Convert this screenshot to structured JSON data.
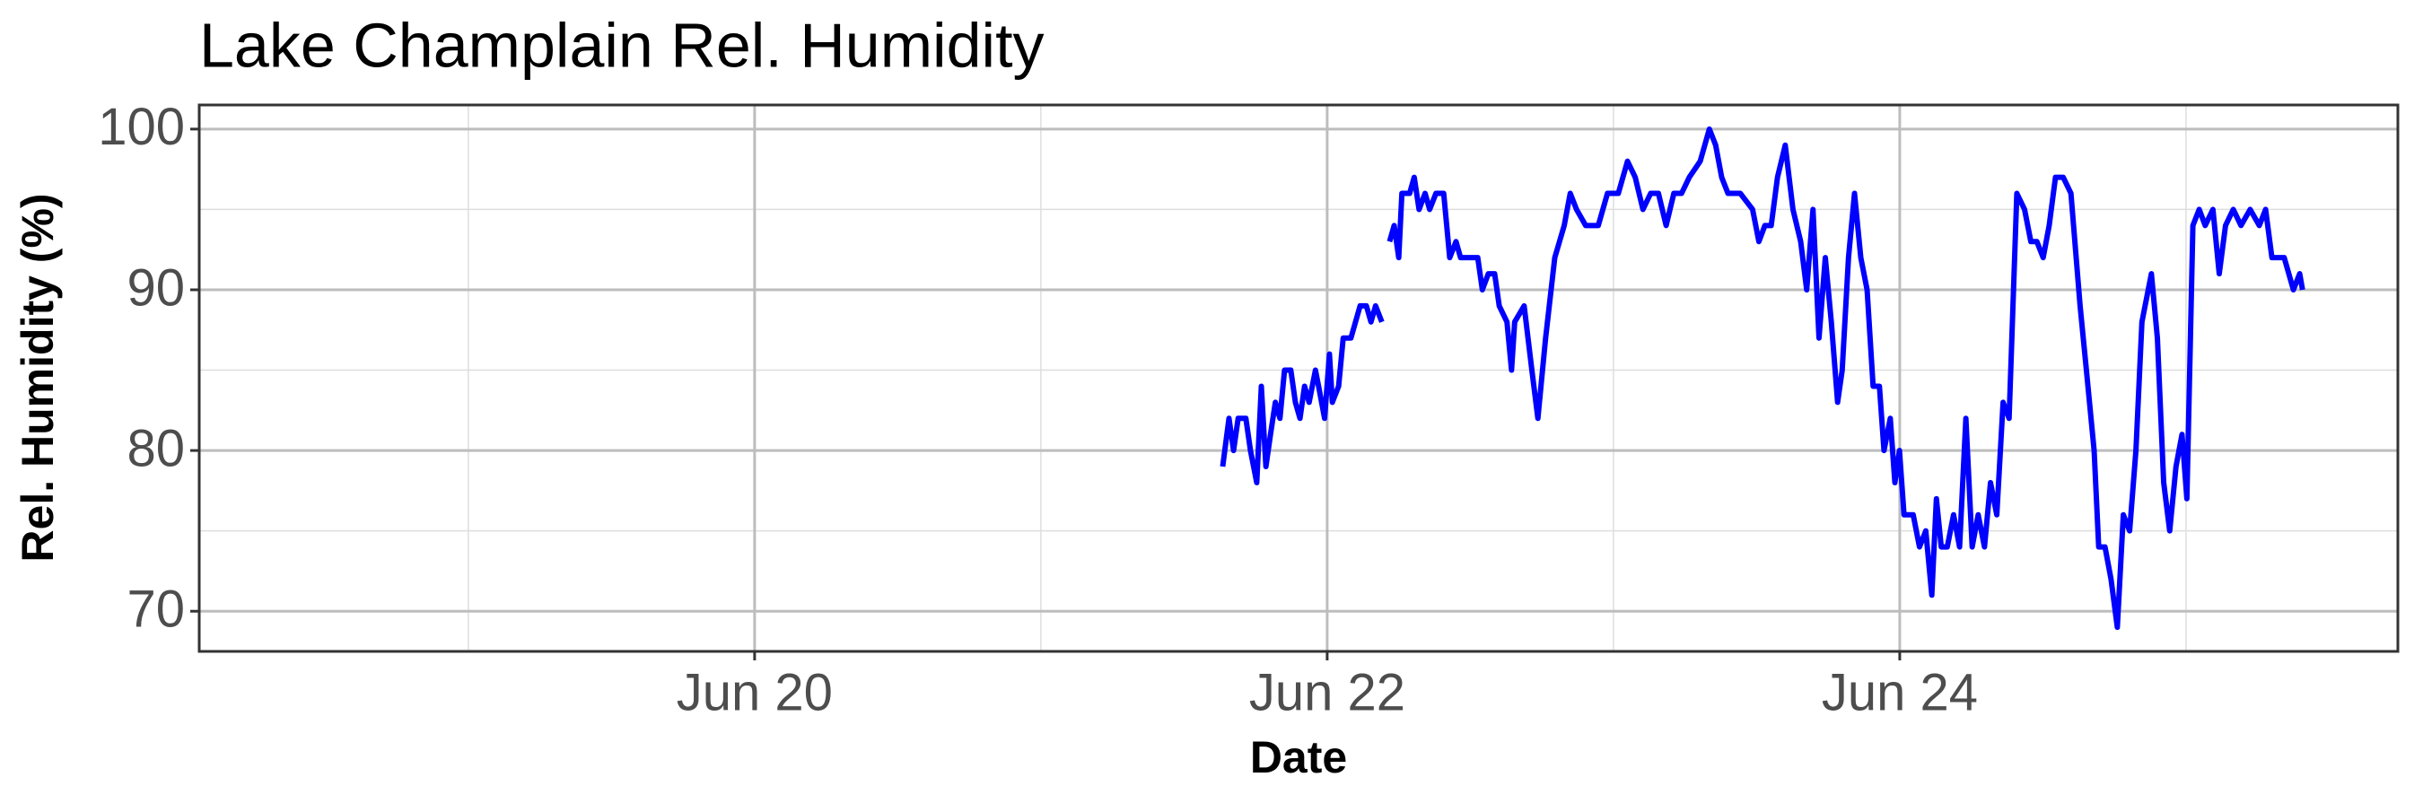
{
  "chart_data": {
    "type": "line",
    "title": "Lake Champlain Rel. Humidity",
    "x_label": "Date",
    "y_label": "Rel. Humidity (%)",
    "xlim": [
      18.06,
      25.74
    ],
    "ylim": [
      67.5,
      101.5
    ],
    "xticks": [
      {
        "value": 20,
        "label": "Jun 20"
      },
      {
        "value": 22,
        "label": "Jun 22"
      },
      {
        "value": 24,
        "label": "Jun 24"
      }
    ],
    "yticks": [
      70,
      80,
      90,
      100
    ],
    "x_minor_grid": [
      19,
      21,
      23,
      25
    ],
    "y_minor_grid": [
      75,
      85,
      95
    ],
    "grid": true,
    "series": [
      {
        "color": "#0000ff",
        "x": [
          21.635,
          21.657,
          21.673,
          21.689,
          21.716,
          21.732,
          21.754,
          21.77,
          21.786,
          21.802,
          21.819,
          21.835,
          21.851,
          21.873,
          21.889,
          21.905,
          21.921,
          21.937,
          21.959,
          21.97,
          21.991,
          22.008,
          22.018,
          22.04,
          22.056,
          22.083,
          22.115,
          22.137,
          22.153,
          22.169,
          22.191,
          22.2,
          22.218,
          22.234,
          22.25,
          22.261,
          22.288,
          22.304,
          22.321,
          22.342,
          22.358,
          22.38,
          22.407,
          22.428,
          22.45,
          22.466,
          22.493,
          22.526,
          22.542,
          22.563,
          22.585,
          22.601,
          22.628,
          22.644,
          22.655,
          22.688,
          22.715,
          22.736,
          22.763,
          22.795,
          22.828,
          22.849,
          22.871,
          22.903,
          22.947,
          22.979,
          23.017,
          23.049,
          23.076,
          23.103,
          23.13,
          23.157,
          23.184,
          23.211,
          23.238,
          23.265,
          23.303,
          23.335,
          23.357,
          23.378,
          23.4,
          23.443,
          23.486,
          23.508,
          23.529,
          23.551,
          23.573,
          23.6,
          23.627,
          23.654,
          23.675,
          23.697,
          23.718,
          23.74,
          23.761,
          23.783,
          23.799,
          23.821,
          23.842,
          23.864,
          23.886,
          23.907,
          23.929,
          23.945,
          23.967,
          23.983,
          23.999,
          24.015,
          24.047,
          24.069,
          24.091,
          24.112,
          24.128,
          24.145,
          24.166,
          24.188,
          24.209,
          24.231,
          24.253,
          24.274,
          24.296,
          24.317,
          24.339,
          24.361,
          24.382,
          24.409,
          24.436,
          24.458,
          24.479,
          24.501,
          24.522,
          24.544,
          24.571,
          24.598,
          24.63,
          24.652,
          24.679,
          24.695,
          24.717,
          24.738,
          24.76,
          24.781,
          24.803,
          24.825,
          24.846,
          24.879,
          24.9,
          24.922,
          24.943,
          24.965,
          24.986,
          25.003,
          25.024,
          25.046,
          25.067,
          25.094,
          25.116,
          25.138,
          25.165,
          25.192,
          25.224,
          25.256,
          25.278,
          25.3,
          25.343,
          25.375,
          25.397,
          25.407
        ],
        "values": [
          79,
          82,
          80,
          82,
          82,
          80,
          78,
          84,
          79,
          81,
          83,
          82,
          85,
          85,
          83,
          82,
          84,
          83,
          85,
          84,
          82,
          86,
          83,
          84,
          87,
          87,
          89,
          89,
          88,
          89,
          88,
          null,
          93,
          94,
          92,
          96,
          96,
          97,
          95,
          96,
          95,
          96,
          96,
          92,
          93,
          92,
          92,
          92,
          90,
          91,
          91,
          89,
          88,
          85,
          88,
          89,
          85,
          82,
          87,
          92,
          94,
          96,
          95,
          94,
          94,
          96,
          96,
          98,
          97,
          95,
          96,
          96,
          94,
          96,
          96,
          97,
          98,
          100,
          99,
          97,
          96,
          96,
          95,
          93,
          94,
          94,
          97,
          99,
          95,
          93,
          90,
          95,
          87,
          92,
          88,
          83,
          85,
          92,
          96,
          92,
          90,
          84,
          84,
          80,
          82,
          78,
          80,
          76,
          76,
          74,
          75,
          71,
          77,
          74,
          74,
          76,
          74,
          82,
          74,
          76,
          74,
          78,
          76,
          83,
          82,
          96,
          95,
          93,
          93,
          92,
          94,
          97,
          97,
          96,
          89,
          85,
          80,
          74,
          74,
          72,
          69,
          76,
          75,
          80,
          88,
          91,
          87,
          78,
          75,
          79,
          81,
          77,
          94,
          95,
          94,
          95,
          91,
          94,
          95,
          94,
          95,
          94,
          95,
          92,
          92,
          90,
          91,
          90
        ]
      }
    ]
  }
}
